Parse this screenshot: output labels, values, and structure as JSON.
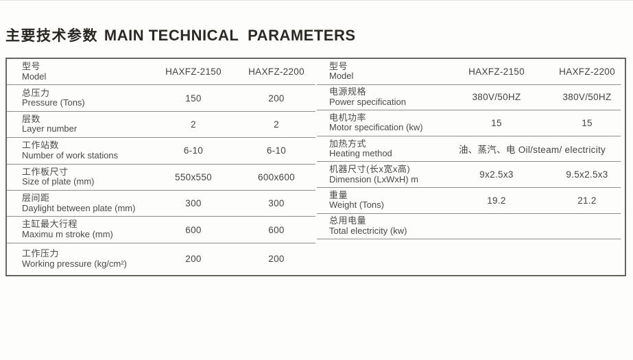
{
  "title": {
    "zh": "主要技术参数",
    "en": "MAIN TECHNICAL  PARAMETERS"
  },
  "tables": {
    "left": {
      "rows": [
        {
          "zh": "型号",
          "en": "Model",
          "v1": "HAXFZ-2150",
          "v2": "HAXFZ-2200"
        },
        {
          "zh": "总压力",
          "en": "Pressure (Tons)",
          "v1": "150",
          "v2": "200"
        },
        {
          "zh": "层数",
          "en": "Layer number",
          "v1": "2",
          "v2": "2"
        },
        {
          "zh": "工作站数",
          "en": "Number of work stations",
          "v1": "6-10",
          "v2": "6-10"
        },
        {
          "zh": "工作板尺寸",
          "en": "Size of plate (mm)",
          "v1": "550x550",
          "v2": "600x600"
        },
        {
          "zh": "层间距",
          "en": "Daylight between plate (mm)",
          "v1": "300",
          "v2": "300"
        },
        {
          "zh": "主缸最大行程",
          "en": "Maximu m stroke (mm)",
          "v1": "600",
          "v2": "600"
        },
        {
          "zh": "工作压力",
          "en": "Working pressure (kg/cm²)",
          "v1": "200",
          "v2": "200"
        }
      ]
    },
    "right": {
      "rows": [
        {
          "zh": "型号",
          "en": "Model",
          "v1": "HAXFZ-2150",
          "v2": "HAXFZ-2200"
        },
        {
          "zh": "电源规格",
          "en": "Power specification",
          "v1": "380V/50HZ",
          "v2": "380V/50HZ"
        },
        {
          "zh": "电机功率",
          "en": "Motor specification (kw)",
          "v1": "15",
          "v2": "15"
        },
        {
          "zh": "加热方式",
          "en": "Heating method",
          "span": "油、蒸汽、电 Oil/steam/ electricity"
        },
        {
          "zh": "机器尺寸(长x宽x高)",
          "en": "Dimension (LxWxH) m",
          "v1": "9x2.5x3",
          "v2": "9.5x2.5x3"
        },
        {
          "zh": "重量",
          "en": "Weight (Tons)",
          "v1": "19.2",
          "v2": "21.2"
        },
        {
          "zh": "总用电量",
          "en": "Total electricity (kw)",
          "v1": "",
          "v2": ""
        }
      ]
    }
  },
  "colors": {
    "frame_border": "#67645e",
    "row_separator": "#8f8d89",
    "label_text": "#4b4946",
    "value_text": "#454341",
    "title_text": "#29251f"
  }
}
